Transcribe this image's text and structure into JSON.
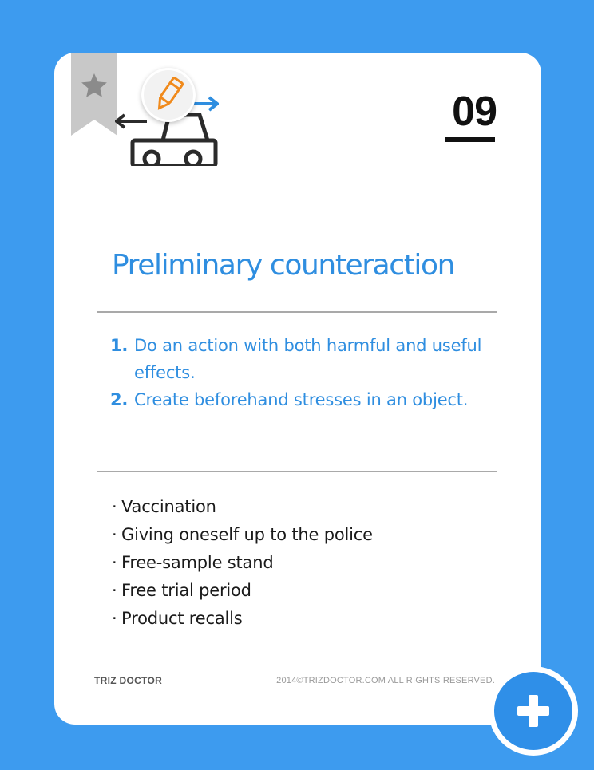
{
  "card": {
    "number": "09",
    "title": "Preliminary counteraction",
    "rules": [
      {
        "num": "1.",
        "text": "Do an action with both harmful and useful effects."
      },
      {
        "num": "2.",
        "text": "Create beforehand stresses in an object."
      }
    ],
    "examples": [
      "Vaccination",
      "Giving oneself up to the police",
      "Free-sample stand",
      "Free trial period",
      "Product recalls"
    ],
    "footer": {
      "brand": "TRIZ DOCTOR",
      "copyright": "2014©TRIZDOCTOR.COM  ALL RIGHTS RESERVED."
    }
  },
  "icons": {
    "bookmark": "star-bookmark-icon",
    "edit": "pencil-icon",
    "illustration": "car-arrows-icon",
    "fab": "plus-icon"
  },
  "colors": {
    "background": "#3d9bef",
    "accent": "#2f8ee0",
    "bookmark": "#c8c8c8",
    "pencil": "#f08a1c"
  }
}
